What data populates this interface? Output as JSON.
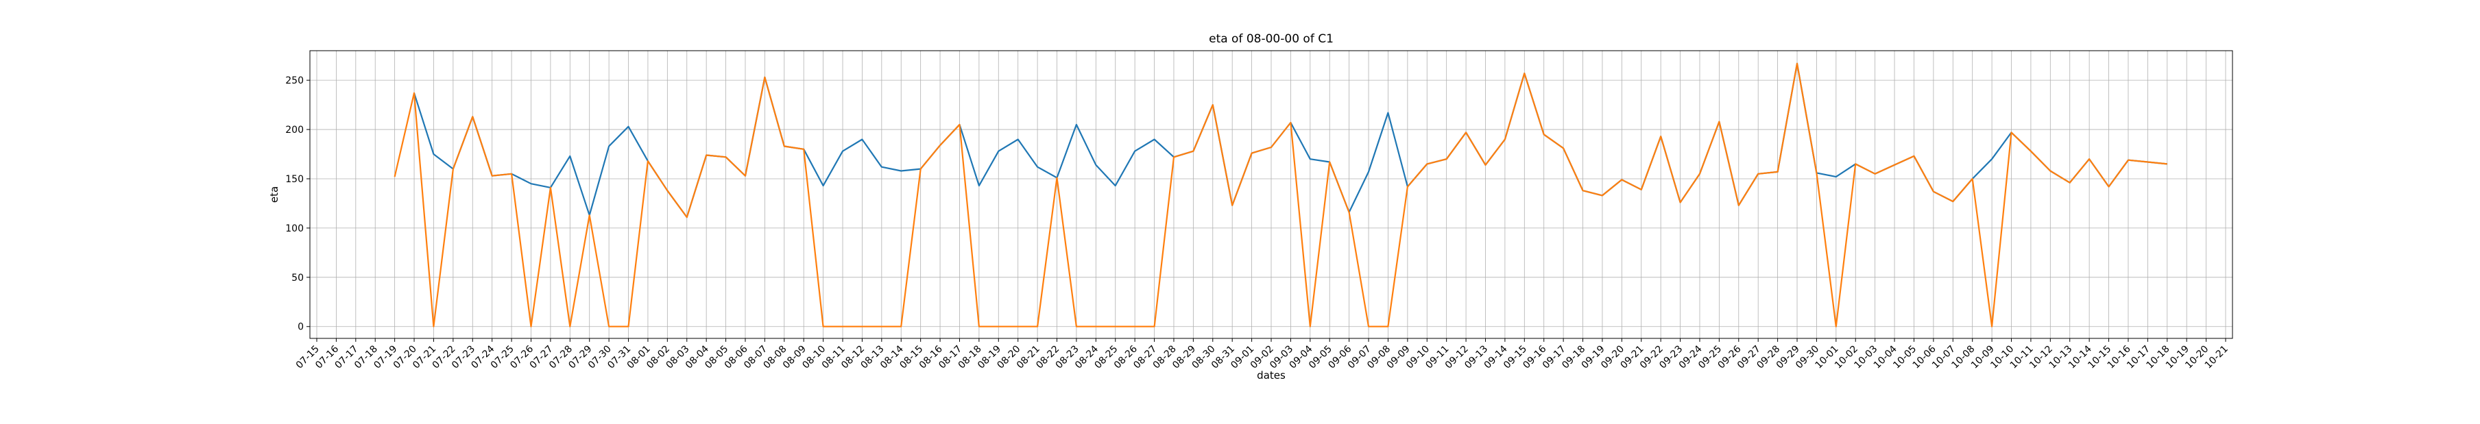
{
  "chart_data": {
    "type": "line",
    "title": "eta of 08-00-00 of C1",
    "xlabel": "dates",
    "ylabel": "eta",
    "ylim": [
      -12,
      280
    ],
    "yticks": [
      0,
      50,
      100,
      150,
      200,
      250
    ],
    "grid": true,
    "x_tick_labels": [
      "07-15",
      "07-16",
      "07-17",
      "07-18",
      "07-19",
      "07-20",
      "07-21",
      "07-22",
      "07-23",
      "07-24",
      "07-25",
      "07-26",
      "07-27",
      "07-28",
      "07-29",
      "07-30",
      "07-31",
      "08-01",
      "08-02",
      "08-03",
      "08-04",
      "08-05",
      "08-06",
      "08-07",
      "08-08",
      "08-09",
      "08-10",
      "08-11",
      "08-12",
      "08-13",
      "08-14",
      "08-15",
      "08-16",
      "08-17",
      "08-18",
      "08-19",
      "08-20",
      "08-21",
      "08-22",
      "08-23",
      "08-24",
      "08-25",
      "08-26",
      "08-27",
      "08-28",
      "08-29",
      "08-30",
      "08-31",
      "09-01",
      "09-02",
      "09-03",
      "09-04",
      "09-05",
      "09-06",
      "09-07",
      "09-08",
      "09-09",
      "09-10",
      "09-11",
      "09-12",
      "09-13",
      "09-14",
      "09-15",
      "09-16",
      "09-17",
      "09-18",
      "09-19",
      "09-20",
      "09-21",
      "09-22",
      "09-23",
      "09-24",
      "09-25",
      "09-26",
      "09-27",
      "09-28",
      "09-29",
      "09-30",
      "10-01",
      "10-02",
      "10-03",
      "10-04",
      "10-05",
      "10-06",
      "10-07",
      "10-08",
      "10-09",
      "10-10",
      "10-11",
      "10-12",
      "10-13",
      "10-14",
      "10-15",
      "10-16",
      "10-17",
      "10-18",
      "10-19",
      "10-20",
      "10-21"
    ],
    "x_first_data_label": "07-19",
    "series": [
      {
        "color": "#1f77b4",
        "values": [
          null,
          237,
          175,
          160,
          213,
          153,
          155,
          145,
          141,
          173,
          113,
          183,
          203,
          168,
          138,
          111,
          174,
          172,
          153,
          253,
          183,
          180,
          143,
          178,
          190,
          162,
          158,
          160,
          184,
          205,
          143,
          178,
          190,
          162,
          151,
          205,
          164,
          143,
          178,
          190,
          172,
          178,
          225,
          123,
          176,
          182,
          207,
          170,
          167,
          116,
          157,
          217,
          142,
          165,
          170,
          197,
          164,
          190,
          257,
          195,
          181,
          138,
          133,
          149,
          139,
          193,
          126,
          155,
          208,
          123,
          155,
          157,
          267,
          156,
          152,
          165,
          155,
          164,
          173,
          137,
          127,
          150,
          170,
          197,
          178,
          158,
          146,
          170,
          142,
          169,
          167,
          165
        ]
      },
      {
        "color": "#ff7f0e",
        "values": [
          152,
          237,
          0,
          160,
          213,
          153,
          155,
          0,
          141,
          0,
          113,
          0,
          0,
          168,
          138,
          111,
          174,
          172,
          153,
          253,
          183,
          180,
          0,
          0,
          0,
          0,
          0,
          160,
          184,
          205,
          0,
          0,
          0,
          0,
          151,
          0,
          0,
          0,
          0,
          0,
          172,
          178,
          225,
          123,
          176,
          182,
          207,
          0,
          167,
          116,
          0,
          0,
          142,
          165,
          170,
          197,
          164,
          190,
          257,
          195,
          181,
          138,
          133,
          149,
          139,
          193,
          126,
          155,
          208,
          123,
          155,
          157,
          267,
          156,
          0,
          165,
          155,
          164,
          173,
          137,
          127,
          150,
          0,
          197,
          178,
          158,
          146,
          170,
          142,
          169,
          167,
          165
        ]
      }
    ]
  }
}
